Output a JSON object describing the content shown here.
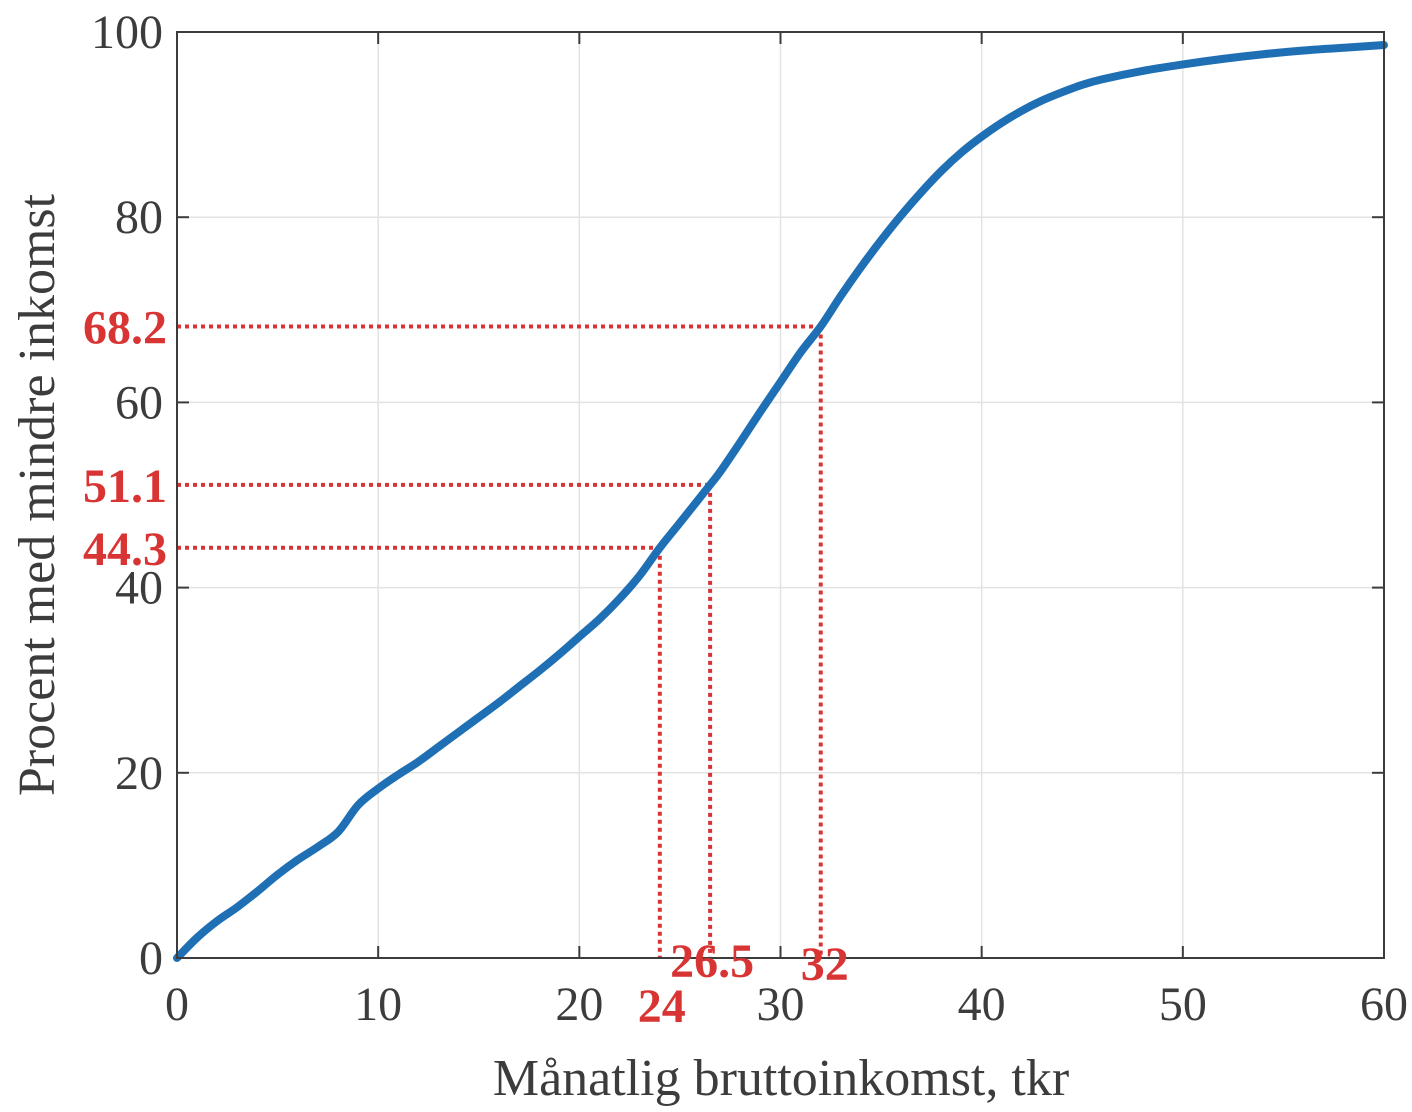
{
  "chart_data": {
    "type": "line",
    "title": "",
    "xlabel": "Månatlig bruttoinkomst, tkr",
    "ylabel": "Procent med mindre inkomst",
    "xlim": [
      0,
      60
    ],
    "ylim": [
      0,
      100
    ],
    "xticks": [
      0,
      10,
      20,
      30,
      40,
      50,
      60
    ],
    "yticks": [
      0,
      20,
      40,
      60,
      80,
      100
    ],
    "xtick_labels": [
      "0",
      "10",
      "20",
      "30",
      "40",
      "50",
      "60"
    ],
    "ytick_labels": [
      "0",
      "20",
      "40",
      "60",
      "80",
      "100"
    ],
    "grid": true,
    "legend": "none",
    "colors": {
      "line": "#1f6fb5",
      "annotation": "#d93434",
      "axis": "#3c3c3c",
      "grid": "#e3e3e3"
    },
    "series": [
      {
        "x": [
          0,
          1,
          2,
          3,
          4,
          5,
          6,
          7,
          8,
          9,
          10,
          11,
          12,
          13,
          14,
          15,
          16,
          17,
          18,
          19,
          20,
          21,
          22,
          23,
          24,
          25,
          26.5,
          27,
          28,
          29,
          30,
          31,
          32,
          33,
          34,
          35,
          36,
          37,
          38,
          39,
          40,
          41,
          42,
          43,
          44,
          45,
          46,
          48,
          50,
          52,
          54,
          56,
          58,
          60
        ],
        "values": [
          0,
          2.2,
          4.0,
          5.5,
          7.2,
          9.0,
          10.6,
          12.0,
          13.6,
          16.5,
          18.3,
          19.8,
          21.2,
          22.8,
          24.4,
          26.0,
          27.6,
          29.3,
          31.0,
          32.8,
          34.7,
          36.6,
          38.8,
          41.3,
          44.3,
          47.0,
          51.1,
          52.5,
          55.7,
          59.0,
          62.2,
          65.4,
          68.2,
          71.5,
          74.6,
          77.5,
          80.2,
          82.7,
          85.0,
          87.0,
          88.7,
          90.2,
          91.5,
          92.6,
          93.5,
          94.3,
          94.9,
          95.8,
          96.5,
          97.1,
          97.6,
          98.0,
          98.3,
          98.6
        ]
      }
    ],
    "annotations": [
      {
        "x": 24,
        "y": 44.3,
        "x_label": "24",
        "y_label": "44.3"
      },
      {
        "x": 26.5,
        "y": 51.1,
        "x_label": "26.5",
        "y_label": "51.1"
      },
      {
        "x": 32,
        "y": 68.2,
        "x_label": "32",
        "y_label": "68.2"
      }
    ]
  }
}
